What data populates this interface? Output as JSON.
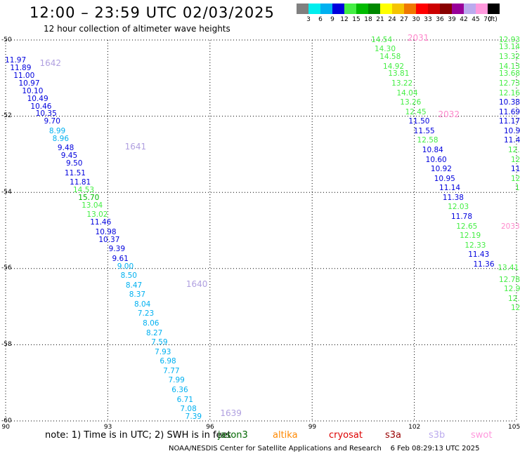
{
  "header": {
    "title": "12:00 – 23:59 UTC 02/03/2025",
    "subtitle": "12 hour collection of altimeter wave heights"
  },
  "colorbar": {
    "unit": "(ft)",
    "bins": [
      {
        "label": "3",
        "color": "#808080"
      },
      {
        "label": "6",
        "color": "#00eeee"
      },
      {
        "label": "9",
        "color": "#00b0f0"
      },
      {
        "label": "12",
        "color": "#0000dd"
      },
      {
        "label": "15",
        "color": "#44ee44"
      },
      {
        "label": "18",
        "color": "#00bb00"
      },
      {
        "label": "21",
        "color": "#008800"
      },
      {
        "label": "24",
        "color": "#ffff00"
      },
      {
        "label": "27",
        "color": "#f5c400"
      },
      {
        "label": "30",
        "color": "#f07800"
      },
      {
        "label": "33",
        "color": "#ff0000"
      },
      {
        "label": "36",
        "color": "#cc0000"
      },
      {
        "label": "39",
        "color": "#880000"
      },
      {
        "label": "42",
        "color": "#990099"
      },
      {
        "label": "45",
        "color": "#bbaaee"
      },
      {
        "label": "70",
        "color": "#ff99dd"
      },
      {
        "label": "",
        "color": "#000000"
      }
    ]
  },
  "map": {
    "lon_range": [
      90,
      105
    ],
    "lat_range": [
      -60,
      -50
    ],
    "x_ticks": [
      "90",
      "93",
      "96",
      "99",
      "102",
      "105"
    ],
    "y_ticks": [
      "-50",
      "-52",
      "-54",
      "-56",
      "-58",
      "-60"
    ],
    "y_values": [
      -50,
      -52,
      -54,
      -56,
      -58,
      -60
    ],
    "grid": true
  },
  "tracks": [
    {
      "times": [
        {
          "text": "1642",
          "color": "#b0a0e0",
          "lon": 91.0,
          "lat": -50.6
        },
        {
          "text": "1641",
          "color": "#b0a0e0",
          "lon": 93.5,
          "lat": -52.8
        },
        {
          "text": "1640",
          "color": "#b0a0e0",
          "lon": 95.3,
          "lat": -56.4
        },
        {
          "text": "1639",
          "color": "#b0a0e0",
          "lon": 96.3,
          "lat": -59.8
        }
      ],
      "points": [
        {
          "text": "11.97",
          "color": "#0000dd",
          "lon": 90.6,
          "lat": -50.55
        },
        {
          "text": "11.89",
          "color": "#0000dd",
          "lon": 90.75,
          "lat": -50.75
        },
        {
          "text": "11.00",
          "color": "#0000dd",
          "lon": 90.85,
          "lat": -50.95
        },
        {
          "text": "10.97",
          "color": "#0000dd",
          "lon": 91.0,
          "lat": -51.15
        },
        {
          "text": "10.10",
          "color": "#0000dd",
          "lon": 91.1,
          "lat": -51.35
        },
        {
          "text": "10.49",
          "color": "#0000dd",
          "lon": 91.25,
          "lat": -51.55
        },
        {
          "text": "10.46",
          "color": "#0000dd",
          "lon": 91.35,
          "lat": -51.75
        },
        {
          "text": "10.35",
          "color": "#0000dd",
          "lon": 91.5,
          "lat": -51.95
        },
        {
          "text": "9.70",
          "color": "#0000dd",
          "lon": 91.6,
          "lat": -52.15
        },
        {
          "text": "8.99",
          "color": "#00b0f0",
          "lon": 91.75,
          "lat": -52.4
        },
        {
          "text": "8.96",
          "color": "#00b0f0",
          "lon": 91.85,
          "lat": -52.6
        },
        {
          "text": "9.48",
          "color": "#0000dd",
          "lon": 92.0,
          "lat": -52.85
        },
        {
          "text": "9.45",
          "color": "#0000dd",
          "lon": 92.1,
          "lat": -53.05
        },
        {
          "text": "9.50",
          "color": "#0000dd",
          "lon": 92.25,
          "lat": -53.25
        },
        {
          "text": "11.51",
          "color": "#0000dd",
          "lon": 92.35,
          "lat": -53.5
        },
        {
          "text": "11.81",
          "color": "#0000dd",
          "lon": 92.5,
          "lat": -53.75
        },
        {
          "text": "14.53",
          "color": "#44ee44",
          "lon": 92.6,
          "lat": -53.95
        },
        {
          "text": "15.70",
          "color": "#00bb00",
          "lon": 92.75,
          "lat": -54.15
        },
        {
          "text": "13.04",
          "color": "#44ee44",
          "lon": 92.85,
          "lat": -54.35
        },
        {
          "text": "13.02",
          "color": "#44ee44",
          "lon": 93.0,
          "lat": -54.6
        },
        {
          "text": "11.46",
          "color": "#0000dd",
          "lon": 93.1,
          "lat": -54.8
        },
        {
          "text": "10.98",
          "color": "#0000dd",
          "lon": 93.25,
          "lat": -55.05
        },
        {
          "text": "10.37",
          "color": "#0000dd",
          "lon": 93.35,
          "lat": -55.25
        },
        {
          "text": "9.39",
          "color": "#0000dd",
          "lon": 93.5,
          "lat": -55.5
        },
        {
          "text": "9.61",
          "color": "#0000dd",
          "lon": 93.6,
          "lat": -55.75
        },
        {
          "text": "9.00",
          "color": "#00b0f0",
          "lon": 93.75,
          "lat": -55.95
        },
        {
          "text": "8.50",
          "color": "#00b0f0",
          "lon": 93.85,
          "lat": -56.2
        },
        {
          "text": "8.47",
          "color": "#00b0f0",
          "lon": 94.0,
          "lat": -56.45
        },
        {
          "text": "8.37",
          "color": "#00b0f0",
          "lon": 94.1,
          "lat": -56.7
        },
        {
          "text": "8.04",
          "color": "#00b0f0",
          "lon": 94.25,
          "lat": -56.95
        },
        {
          "text": "7.23",
          "color": "#00b0f0",
          "lon": 94.35,
          "lat": -57.2
        },
        {
          "text": "8.06",
          "color": "#00b0f0",
          "lon": 94.5,
          "lat": -57.45
        },
        {
          "text": "8.27",
          "color": "#00b0f0",
          "lon": 94.6,
          "lat": -57.7
        },
        {
          "text": "7.59",
          "color": "#00b0f0",
          "lon": 94.75,
          "lat": -57.95
        },
        {
          "text": "7.93",
          "color": "#00b0f0",
          "lon": 94.85,
          "lat": -58.2
        },
        {
          "text": "6.98",
          "color": "#00b0f0",
          "lon": 95.0,
          "lat": -58.45
        },
        {
          "text": "7.77",
          "color": "#00b0f0",
          "lon": 95.1,
          "lat": -58.7
        },
        {
          "text": "7.99",
          "color": "#00b0f0",
          "lon": 95.25,
          "lat": -58.95
        },
        {
          "text": "6.36",
          "color": "#00b0f0",
          "lon": 95.35,
          "lat": -59.2
        },
        {
          "text": "6.71",
          "color": "#00b0f0",
          "lon": 95.5,
          "lat": -59.45
        },
        {
          "text": "7.08",
          "color": "#00b0f0",
          "lon": 95.6,
          "lat": -59.7
        },
        {
          "text": "7.39",
          "color": "#00b0f0",
          "lon": 95.75,
          "lat": -59.9
        }
      ]
    },
    {
      "times": [
        {
          "text": "2031",
          "color": "#ff88cc",
          "lon": 101.8,
          "lat": -49.95
        },
        {
          "text": "2032",
          "color": "#ff88cc",
          "lon": 102.7,
          "lat": -51.95
        }
      ],
      "points": [
        {
          "text": "14.54",
          "color": "#44ee44",
          "lon": 101.35,
          "lat": -50.0
        },
        {
          "text": "14.30",
          "color": "#44ee44",
          "lon": 101.45,
          "lat": -50.25
        },
        {
          "text": "14.58",
          "color": "#44ee44",
          "lon": 101.6,
          "lat": -50.45
        },
        {
          "text": "14.92",
          "color": "#44ee44",
          "lon": 101.7,
          "lat": -50.7
        },
        {
          "text": "13.81",
          "color": "#44ee44",
          "lon": 101.85,
          "lat": -50.9
        },
        {
          "text": "13.22",
          "color": "#44ee44",
          "lon": 101.95,
          "lat": -51.15
        },
        {
          "text": "14.04",
          "color": "#44ee44",
          "lon": 102.1,
          "lat": -51.4
        },
        {
          "text": "13.26",
          "color": "#44ee44",
          "lon": 102.2,
          "lat": -51.65
        },
        {
          "text": "12.45",
          "color": "#44ee44",
          "lon": 102.35,
          "lat": -51.9
        },
        {
          "text": "11.50",
          "color": "#0000dd",
          "lon": 102.45,
          "lat": -52.15
        },
        {
          "text": "11.55",
          "color": "#0000dd",
          "lon": 102.6,
          "lat": -52.4
        },
        {
          "text": "12.58",
          "color": "#44ee44",
          "lon": 102.7,
          "lat": -52.65
        },
        {
          "text": "10.84",
          "color": "#0000dd",
          "lon": 102.85,
          "lat": -52.9
        },
        {
          "text": "10.60",
          "color": "#0000dd",
          "lon": 102.95,
          "lat": -53.15
        },
        {
          "text": "10.92",
          "color": "#0000dd",
          "lon": 103.1,
          "lat": -53.4
        },
        {
          "text": "10.95",
          "color": "#0000dd",
          "lon": 103.2,
          "lat": -53.65
        },
        {
          "text": "11.14",
          "color": "#0000dd",
          "lon": 103.35,
          "lat": -53.9
        },
        {
          "text": "11.38",
          "color": "#0000dd",
          "lon": 103.45,
          "lat": -54.15
        },
        {
          "text": "12.03",
          "color": "#44ee44",
          "lon": 103.6,
          "lat": -54.4
        },
        {
          "text": "11.78",
          "color": "#0000dd",
          "lon": 103.7,
          "lat": -54.65
        },
        {
          "text": "12.65",
          "color": "#44ee44",
          "lon": 103.85,
          "lat": -54.9
        },
        {
          "text": "12.19",
          "color": "#44ee44",
          "lon": 103.95,
          "lat": -55.15
        },
        {
          "text": "12.33",
          "color": "#44ee44",
          "lon": 104.1,
          "lat": -55.4
        },
        {
          "text": "11.43",
          "color": "#0000dd",
          "lon": 104.2,
          "lat": -55.65
        },
        {
          "text": "11.36",
          "color": "#0000dd",
          "lon": 104.35,
          "lat": -55.9
        }
      ]
    }
  ],
  "partial_labels": [
    {
      "text": "2033",
      "color": "#ff88cc",
      "lon": 104.7,
      "lat": -54.9
    },
    {
      "text": "12.93",
      "color": "#44ee44",
      "lon": 104.8,
      "lat": -50.0
    },
    {
      "text": "13.14",
      "color": "#44ee44",
      "lon": 104.85,
      "lat": -50.2
    },
    {
      "text": "13.32",
      "color": "#44ee44",
      "lon": 104.9,
      "lat": -50.45
    },
    {
      "text": "14.13",
      "color": "#44ee44",
      "lon": 104.95,
      "lat": -50.7
    },
    {
      "text": "13.68",
      "color": "#44ee44",
      "lon": 104.95,
      "lat": -50.9
    },
    {
      "text": "12.73",
      "color": "#44ee44",
      "lon": 105.0,
      "lat": -51.15
    },
    {
      "text": "12.16",
      "color": "#44ee44",
      "lon": 105.05,
      "lat": -51.4
    },
    {
      "text": "10.38",
      "color": "#0000dd",
      "lon": 105.1,
      "lat": -51.65
    },
    {
      "text": "11.69",
      "color": "#0000dd",
      "lon": 105.15,
      "lat": -51.9
    },
    {
      "text": "11.17",
      "color": "#0000dd",
      "lon": 105.2,
      "lat": -52.15
    },
    {
      "text": "10.9",
      "color": "#0000dd",
      "lon": 105.3,
      "lat": -52.4
    },
    {
      "text": "11.4",
      "color": "#0000dd",
      "lon": 105.35,
      "lat": -52.65
    },
    {
      "text": "12.",
      "color": "#44ee44",
      "lon": 105.3,
      "lat": -52.9
    },
    {
      "text": "12",
      "color": "#44ee44",
      "lon": 105.3,
      "lat": -53.15
    },
    {
      "text": "11",
      "color": "#0000dd",
      "lon": 105.3,
      "lat": -53.4
    },
    {
      "text": "12",
      "color": "#44ee44",
      "lon": 105.3,
      "lat": -53.65
    },
    {
      "text": "1",
      "color": "#44ee44",
      "lon": 105.2,
      "lat": -53.9
    },
    {
      "text": "13.41",
      "color": "#44ee44",
      "lon": 104.45,
      "lat": -56.0
    },
    {
      "text": "12.78",
      "color": "#44ee44",
      "lon": 104.6,
      "lat": -56.3
    },
    {
      "text": "12.9",
      "color": "#44ee44",
      "lon": 104.75,
      "lat": -56.55
    },
    {
      "text": "12.",
      "color": "#44ee44",
      "lon": 104.85,
      "lat": -56.8
    },
    {
      "text": "12",
      "color": "#44ee44",
      "lon": 105.0,
      "lat": -57.05
    }
  ],
  "footer": {
    "note": "note:  1) Time is in UTC; 2) SWH is in feet",
    "satellites": [
      {
        "name": "jason3",
        "color": "#006600"
      },
      {
        "name": "altika",
        "color": "#ff8800"
      },
      {
        "name": "cryosat",
        "color": "#dd0000"
      },
      {
        "name": "s3a",
        "color": "#990000"
      },
      {
        "name": "s3b",
        "color": "#bbaaee"
      },
      {
        "name": "swot",
        "color": "#ff99dd"
      }
    ],
    "credit": "NOAA/NESDIS Center for Satellite Applications and Research    6 Feb 08:29:13 UTC 2025"
  }
}
